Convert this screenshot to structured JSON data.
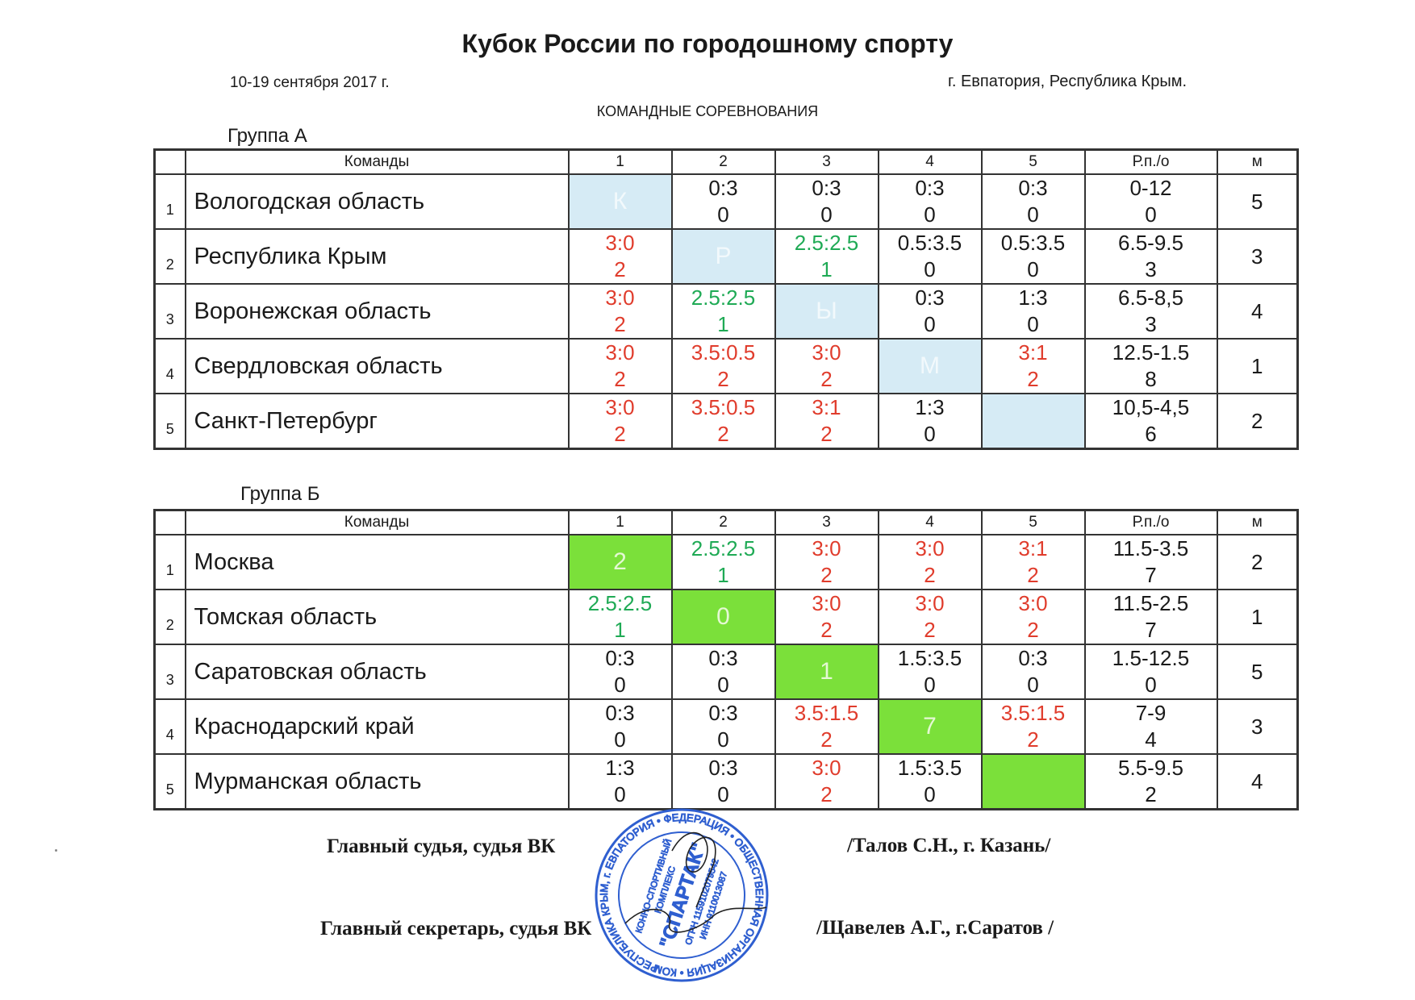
{
  "header": {
    "title": "Кубок России по городошному спорту",
    "dates": "10-19 сентября 2017 г.",
    "place": "г. Евпатория, Республика Крым.",
    "kind": "КОМАНДНЫЕ СОРЕВНОВАНИЯ"
  },
  "columns": {
    "teams": "Команды",
    "c1": "1",
    "c2": "2",
    "c3": "3",
    "c4": "4",
    "c5": "5",
    "points": "Р.п./о",
    "place": "м"
  },
  "groupA": {
    "label": "Группа А",
    "diag_color": "#d6ebf5",
    "rows": [
      {
        "n": "1",
        "team": "Вологодская область",
        "cells": [
          {
            "diag": "К"
          },
          {
            "s": "0:3",
            "p": "0",
            "c": "blk"
          },
          {
            "s": "0:3",
            "p": "0",
            "c": "blk"
          },
          {
            "s": "0:3",
            "p": "0",
            "c": "blk"
          },
          {
            "s": "0:3",
            "p": "0",
            "c": "blk"
          }
        ],
        "pts": "0-12",
        "ptsb": "0",
        "place": "5"
      },
      {
        "n": "2",
        "team": "Республика Крым",
        "cells": [
          {
            "s": "3:0",
            "p": "2",
            "c": "red"
          },
          {
            "diag": "Р"
          },
          {
            "s": "2.5:2.5",
            "p": "1",
            "c": "grn"
          },
          {
            "s": "0.5:3.5",
            "p": "0",
            "c": "blk"
          },
          {
            "s": "0.5:3.5",
            "p": "0",
            "c": "blk"
          }
        ],
        "pts": "6.5-9.5",
        "ptsb": "3",
        "place": "3"
      },
      {
        "n": "3",
        "team": "Воронежская область",
        "cells": [
          {
            "s": "3:0",
            "p": "2",
            "c": "red"
          },
          {
            "s": "2.5:2.5",
            "p": "1",
            "c": "grn"
          },
          {
            "diag": "Ы"
          },
          {
            "s": "0:3",
            "p": "0",
            "c": "blk"
          },
          {
            "s": "1:3",
            "p": "0",
            "c": "blk"
          }
        ],
        "pts": "6.5-8,5",
        "ptsb": "3",
        "place": "4"
      },
      {
        "n": "4",
        "team": "Свердловская область",
        "cells": [
          {
            "s": "3:0",
            "p": "2",
            "c": "red"
          },
          {
            "s": "3.5:0.5",
            "p": "2",
            "c": "red"
          },
          {
            "s": "3:0",
            "p": "2",
            "c": "red"
          },
          {
            "diag": "М"
          },
          {
            "s": "3:1",
            "p": "2",
            "c": "red"
          }
        ],
        "pts": "12.5-1.5",
        "ptsb": "8",
        "place": "1"
      },
      {
        "n": "5",
        "team": "Санкт-Петербург",
        "cells": [
          {
            "s": "3:0",
            "p": "2",
            "c": "red"
          },
          {
            "s": "3.5:0.5",
            "p": "2",
            "c": "red"
          },
          {
            "s": "3:1",
            "p": "2",
            "c": "red"
          },
          {
            "s": "1:3",
            "p": "0",
            "c": "blk"
          },
          {
            "diag": ""
          }
        ],
        "pts": "10,5-4,5",
        "ptsb": "6",
        "place": "2"
      }
    ]
  },
  "groupB": {
    "label": "Группа Б",
    "diag_color": "#7be03a",
    "rows": [
      {
        "n": "1",
        "team": "Москва",
        "cells": [
          {
            "diag": "2"
          },
          {
            "s": "2.5:2.5",
            "p": "1",
            "c": "grn"
          },
          {
            "s": "3:0",
            "p": "2",
            "c": "red"
          },
          {
            "s": "3:0",
            "p": "2",
            "c": "red"
          },
          {
            "s": "3:1",
            "p": "2",
            "c": "red"
          }
        ],
        "pts": "11.5-3.5",
        "ptsb": "7",
        "place": "2"
      },
      {
        "n": "2",
        "team": "Томская область",
        "cells": [
          {
            "s": "2.5:2.5",
            "p": "1",
            "c": "grn"
          },
          {
            "diag": "0"
          },
          {
            "s": "3:0",
            "p": "2",
            "c": "red"
          },
          {
            "s": "3:0",
            "p": "2",
            "c": "red"
          },
          {
            "s": "3:0",
            "p": "2",
            "c": "red"
          }
        ],
        "pts": "11.5-2.5",
        "ptsb": "7",
        "place": "1"
      },
      {
        "n": "3",
        "team": "Саратовская область",
        "cells": [
          {
            "s": "0:3",
            "p": "0",
            "c": "blk"
          },
          {
            "s": "0:3",
            "p": "0",
            "c": "blk"
          },
          {
            "diag": "1"
          },
          {
            "s": "1.5:3.5",
            "p": "0",
            "c": "blk"
          },
          {
            "s": "0:3",
            "p": "0",
            "c": "blk"
          }
        ],
        "pts": "1.5-12.5",
        "ptsb": "0",
        "place": "5"
      },
      {
        "n": "4",
        "team": "Краснодарский край",
        "cells": [
          {
            "s": "0:3",
            "p": "0",
            "c": "blk"
          },
          {
            "s": "0:3",
            "p": "0",
            "c": "blk"
          },
          {
            "s": "3.5:1.5",
            "p": "2",
            "c": "red"
          },
          {
            "diag": "7"
          },
          {
            "s": "3.5:1.5",
            "p": "2",
            "c": "red"
          }
        ],
        "pts": "7-9",
        "ptsb": "4",
        "place": "3"
      },
      {
        "n": "5",
        "team": "Мурманская область",
        "cells": [
          {
            "s": "1:3",
            "p": "0",
            "c": "blk"
          },
          {
            "s": "0:3",
            "p": "0",
            "c": "blk"
          },
          {
            "s": "3:0",
            "p": "2",
            "c": "red"
          },
          {
            "s": "1.5:3.5",
            "p": "0",
            "c": "blk"
          },
          {
            "diag": ""
          }
        ],
        "pts": "5.5-9.5",
        "ptsb": "2",
        "place": "4"
      }
    ]
  },
  "signatures": {
    "judge_role": "Главный судья, судья ВК",
    "judge_name": "/Талов С.Н., г. Казань/",
    "secretary_role": "Главный секретарь, судья ВК",
    "secretary_name": "/Щавелев А.Г., г.Саратов /"
  },
  "stamp": {
    "name": "\"СПАРТАК\"",
    "ring_text": "РЕСПУБЛИКА КРЫМ, г. ЕВПАТОРИЯ • ФЕДЕРАЦИЯ • ОБЩЕСТВЕННАЯ ОРГАНИЗАЦИЯ • КОМПЛЕКС ",
    "lines": [
      "КОННО-СПОРТИВНЫЙ",
      "КОМПЛЕКС",
      "ОГРН 1159102079542",
      "ИНН 9110013087"
    ],
    "color": "#2f5fd0"
  }
}
